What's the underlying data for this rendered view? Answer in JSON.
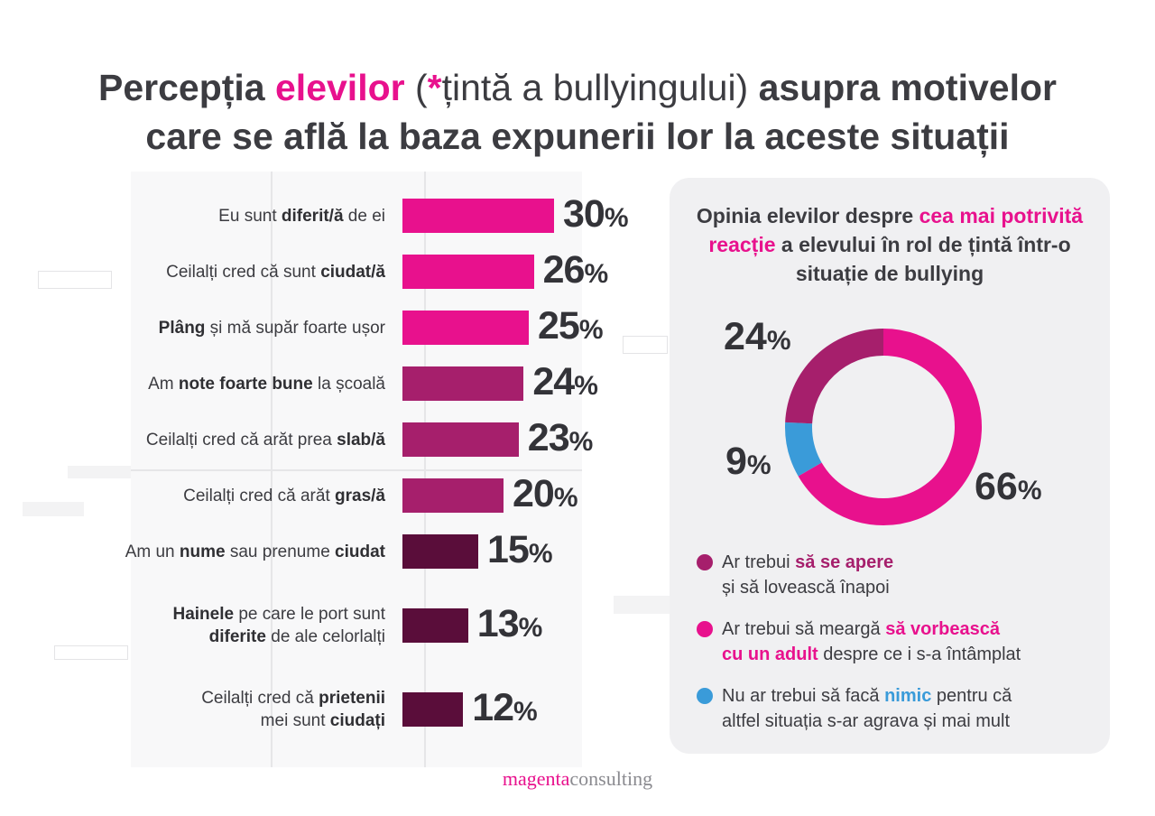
{
  "title": {
    "part1": "Percepția ",
    "highlight": "elevilor",
    "paren_open": " (",
    "asterisk": "*",
    "paren_text": "țintă a bullyingului)",
    "part2": " asupra motivelor",
    "line2": "care se află la baza expunerii lor la aceste situații"
  },
  "colors": {
    "magenta": "#e8118d",
    "purple": "#a61f6c",
    "dark_plum": "#5a0d3a",
    "blue": "#3a9bd9",
    "panel_bg": "#f0f0f2"
  },
  "chart_data": [
    {
      "type": "bar",
      "orientation": "horizontal",
      "categories": [
        "Eu sunt diferit/ă de ei",
        "Ceilalți cred că sunt ciudat/ă",
        "Plâng și mă supăr foarte ușor",
        "Am note foarte bune la școală",
        "Ceilalți cred că arăt prea slab/ă",
        "Ceilalți cred că arăt gras/ă",
        "Am un nume sau prenume ciudat",
        "Hainele pe care le port sunt diferite de ale celorlalți",
        "Ceilalți cred că prietenii mei sunt ciudați"
      ],
      "values": [
        30,
        26,
        25,
        24,
        23,
        20,
        15,
        13,
        12
      ],
      "value_labels": [
        "30",
        "26",
        "25",
        "24",
        "23",
        "20",
        "15",
        "13",
        "12"
      ],
      "unit": "%",
      "bar_colors": [
        "#e8118d",
        "#e8118d",
        "#e8118d",
        "#a61f6c",
        "#a61f6c",
        "#a61f6c",
        "#5a0d3a",
        "#5a0d3a",
        "#5a0d3a"
      ]
    },
    {
      "type": "pie",
      "title": "Opinia elevilor despre cea mai potrivită reacție a elevului în rol de țintă într-o situație de bullying",
      "categories": [
        "Ar trebui să se apere și să lovească înapoi",
        "Ar trebui să meargă să vorbească cu un adult despre ce i s-a întâmplat",
        "Nu ar trebui să facă nimic pentru că altfel situația s-ar agrava și mai mult"
      ],
      "values": [
        24,
        66,
        9
      ],
      "value_labels": [
        "24",
        "66",
        "9"
      ],
      "unit": "%",
      "colors": [
        "#a61f6c",
        "#e8118d",
        "#3a9bd9"
      ]
    }
  ],
  "bar_labels": [
    {
      "pre": "Eu sunt ",
      "bold": "diferit/ă",
      "post": " de ei"
    },
    {
      "pre": "Ceilalți cred că sunt ",
      "bold": "ciudat/ă",
      "post": ""
    },
    {
      "pre": "",
      "bold": "Plâng",
      "post": " și mă supăr foarte ușor"
    },
    {
      "pre": "Am ",
      "bold": "note foarte bune",
      "post": " la școală"
    },
    {
      "pre": "Ceilalți cred că arăt prea ",
      "bold": "slab/ă",
      "post": ""
    },
    {
      "pre": "Ceilalți cred că arăt ",
      "bold": "gras/ă",
      "post": ""
    },
    {
      "pre": "Am un ",
      "bold": "nume",
      "post": " sau prenume ",
      "bold2": "ciudat"
    },
    {
      "l1_bold": "Hainele",
      "l1_post": " pe care le port sunt",
      "l2_bold": "diferite",
      "l2_post": " de ale celorlalți"
    },
    {
      "l1_pre": "Ceilalți cred că ",
      "l1_bold": "prietenii",
      "l2_pre": "mei sunt ",
      "l2_bold": "ciudați"
    }
  ],
  "panel": {
    "title_pre": "Opinia elevilor despre ",
    "title_hl": "cea mai potrivită reacție",
    "title_post": " a elevului în rol de țintă într-o situație de bullying"
  },
  "legend": [
    {
      "pre": "Ar trebui ",
      "bold": "să se apere",
      "post": "",
      "line2": "și să lovească înapoi",
      "color": "#a61f6c",
      "bold_color": "#a61f6c"
    },
    {
      "pre": "Ar trebui să meargă ",
      "bold": "să vorbească",
      "post": "",
      "line2_bold": "cu un adult",
      "line2": " despre ce i s-a întâmplat",
      "color": "#e8118d",
      "bold_color": "#e8118d"
    },
    {
      "pre": "Nu ar trebui să facă ",
      "bold": "nimic",
      "post": " pentru că",
      "line2": "altfel situația s-ar agrava și mai mult",
      "color": "#3a9bd9",
      "bold_color": "#3a9bd9"
    }
  ],
  "brand": {
    "part1": "magenta",
    "part2": "consulting"
  }
}
